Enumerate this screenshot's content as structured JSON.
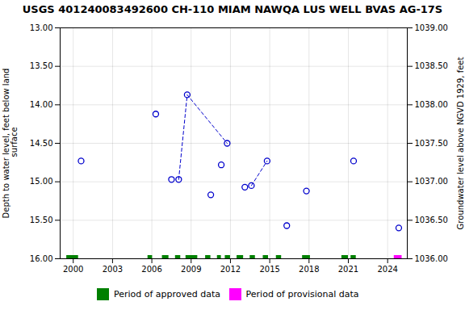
{
  "chart_data": {
    "type": "scatter",
    "title": "USGS 401240083492600 CH-110 MIAM NAWQA LUS WELL BVAS AG-17S",
    "ylabel": "Depth to water level, feet below land\n surface",
    "y2label": "Groundwater level above NGVD 1929, feet",
    "xlim": [
      1999.0,
      2025.5
    ],
    "xticks": [
      2000,
      2003,
      2006,
      2009,
      2012,
      2015,
      2018,
      2021,
      2024
    ],
    "ylim": [
      16.0,
      13.0
    ],
    "yticks": [
      {
        "value": 13.0,
        "label": "13.00"
      },
      {
        "value": 13.5,
        "label": "13.50"
      },
      {
        "value": 14.0,
        "label": "14.00"
      },
      {
        "value": 14.5,
        "label": "14.50"
      },
      {
        "value": 15.0,
        "label": "15.00"
      },
      {
        "value": 15.5,
        "label": "15.50"
      },
      {
        "value": 16.0,
        "label": "16.00"
      }
    ],
    "y2lim": [
      1036.0,
      1039.0
    ],
    "y2ticks": [
      {
        "value": 1036.0,
        "label": "1036.00"
      },
      {
        "value": 1036.5,
        "label": "1036.50"
      },
      {
        "value": 1037.0,
        "label": "1037.00"
      },
      {
        "value": 1037.5,
        "label": "1037.50"
      },
      {
        "value": 1038.0,
        "label": "1038.00"
      },
      {
        "value": 1038.5,
        "label": "1038.50"
      },
      {
        "value": 1039.0,
        "label": "1039.00"
      }
    ],
    "grid": true,
    "legend": "bottom",
    "series": [
      {
        "type": "scatter",
        "marker": "circle",
        "color": "#0000cc",
        "x": [
          2000.6,
          2006.3,
          2007.5,
          2008.05,
          2008.7,
          2010.5,
          2011.3,
          2011.75,
          2013.1,
          2013.6,
          2014.8,
          2016.3,
          2017.8,
          2021.4,
          2024.85
        ],
        "values": [
          14.73,
          14.12,
          14.97,
          14.97,
          13.87,
          15.17,
          14.78,
          14.5,
          15.07,
          15.05,
          14.73,
          15.57,
          15.12,
          14.73,
          15.6
        ]
      },
      {
        "type": "line",
        "line_style": "dashed",
        "color": "#0000cc",
        "x": [
          2008.05,
          2008.7,
          2011.75
        ],
        "values": [
          14.97,
          13.87,
          14.5
        ]
      },
      {
        "type": "line",
        "line_style": "dashed",
        "color": "#0000cc",
        "x": [
          2013.6,
          2014.8
        ],
        "values": [
          15.05,
          14.73
        ]
      },
      {
        "name": "Period of approved data",
        "type": "interval",
        "color": "#008000",
        "y": 16.0,
        "ranges": [
          [
            1999.5,
            2000.4
          ],
          [
            2005.7,
            2006.05
          ],
          [
            2006.8,
            2007.3
          ],
          [
            2007.8,
            2008.2
          ],
          [
            2008.6,
            2009.5
          ],
          [
            2010.1,
            2010.5
          ],
          [
            2011.0,
            2011.3
          ],
          [
            2011.6,
            2012.0
          ],
          [
            2012.5,
            2013.0
          ],
          [
            2013.5,
            2013.9
          ],
          [
            2014.5,
            2014.9
          ],
          [
            2015.5,
            2015.9
          ],
          [
            2017.5,
            2018.1
          ],
          [
            2020.5,
            2021.0
          ],
          [
            2021.2,
            2021.6
          ]
        ]
      },
      {
        "name": "Period of provisional data",
        "type": "interval",
        "color": "#ff00ff",
        "y": 16.0,
        "ranges": [
          [
            2024.5,
            2025.1
          ]
        ]
      }
    ]
  }
}
